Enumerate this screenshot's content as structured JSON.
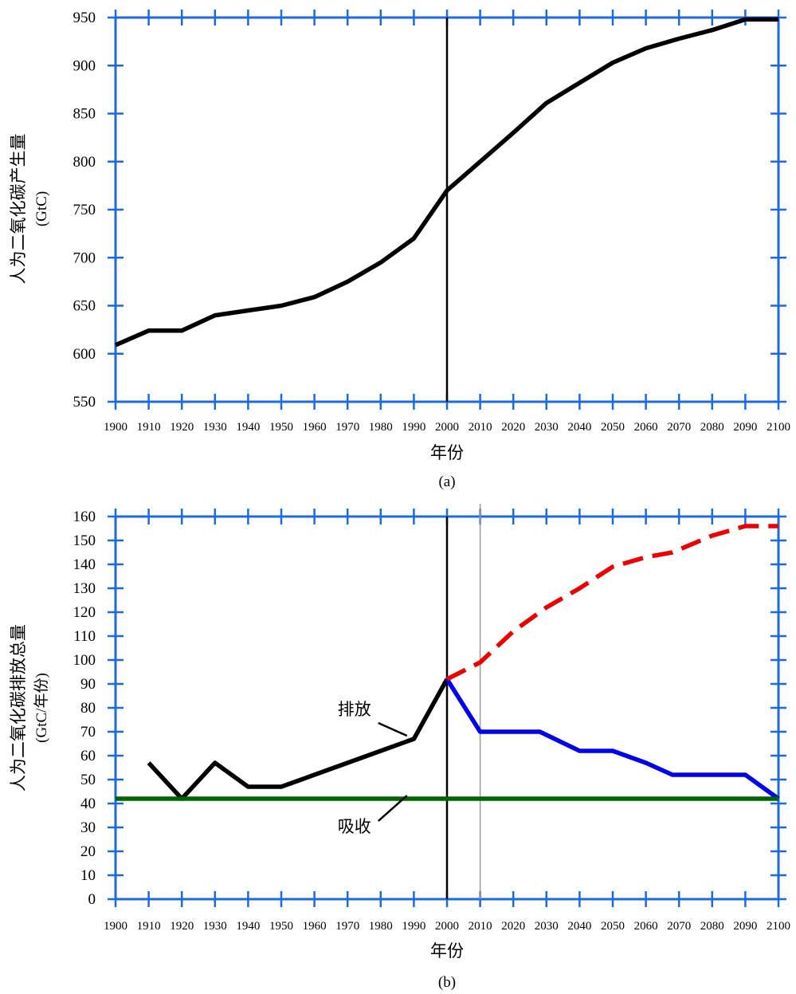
{
  "chart_data": [
    {
      "type": "line",
      "caption": "(a)",
      "xlabel": "年份",
      "ylabel": "人为二氧化碳产生量",
      "ylabel_unit": "(GtC)",
      "xlim": [
        1900,
        2100
      ],
      "ylim": [
        550,
        950
      ],
      "x_ticks": [
        1900,
        1910,
        1920,
        1930,
        1940,
        1950,
        1960,
        1970,
        1980,
        1990,
        2000,
        2010,
        2020,
        2030,
        2040,
        2050,
        2060,
        2070,
        2080,
        2090,
        2100
      ],
      "y_ticks": [
        550,
        600,
        650,
        700,
        750,
        800,
        850,
        900,
        950
      ],
      "vline": 2000,
      "series": [
        {
          "color": "#000000",
          "style": "solid",
          "x": [
            1900,
            1910,
            1920,
            1930,
            1940,
            1950,
            1960,
            1970,
            1980,
            1990,
            2000,
            2010,
            2020,
            2030,
            2040,
            2050,
            2060,
            2070,
            2080,
            2090,
            2100
          ],
          "values": [
            609,
            624,
            624,
            640,
            645,
            650,
            659,
            675,
            695,
            720,
            770,
            800,
            830,
            861,
            882,
            903,
            918,
            928,
            937,
            948,
            948
          ]
        }
      ]
    },
    {
      "type": "line",
      "caption": "(b)",
      "xlabel": "年份",
      "ylabel": "人为二氧化碳排放总量",
      "ylabel_unit": "(GtC/年份)",
      "xlim": [
        1900,
        2100
      ],
      "ylim": [
        0,
        160
      ],
      "x_ticks": [
        1900,
        1910,
        1920,
        1930,
        1940,
        1950,
        1960,
        1970,
        1980,
        1990,
        2000,
        2010,
        2020,
        2030,
        2040,
        2050,
        2060,
        2070,
        2080,
        2090,
        2100
      ],
      "y_ticks": [
        0,
        10,
        20,
        30,
        40,
        50,
        60,
        70,
        80,
        90,
        100,
        110,
        120,
        130,
        140,
        150,
        160
      ],
      "vline": 2000,
      "vline_thin": 2010,
      "annotations": [
        {
          "text": "排放",
          "at_x": 1986,
          "at_y": 67
        },
        {
          "text": "吸收",
          "at_x": 1986,
          "at_y": 40
        }
      ],
      "series": [
        {
          "color": "#000000",
          "style": "solid",
          "x": [
            1910,
            1920,
            1930,
            1940,
            1950,
            1960,
            1970,
            1980,
            1990,
            2000
          ],
          "values": [
            57,
            42,
            57,
            47,
            47,
            52,
            57,
            62,
            67,
            92
          ]
        },
        {
          "color": "#0000ee",
          "style": "solid",
          "x": [
            2000,
            2010,
            2020,
            2028,
            2040,
            2050,
            2060,
            2068,
            2080,
            2090,
            2100
          ],
          "values": [
            92,
            70,
            70,
            70,
            62,
            62,
            57,
            52,
            52,
            52,
            42
          ]
        },
        {
          "color": "#ee0000",
          "style": "dashed",
          "x": [
            2000,
            2010,
            2020,
            2030,
            2040,
            2050,
            2060,
            2068,
            2080,
            2090,
            2100
          ],
          "values": [
            92,
            99,
            112,
            122,
            130,
            139,
            143,
            145,
            152,
            156,
            156
          ]
        },
        {
          "color": "#006400",
          "style": "solid",
          "x": [
            1900,
            2100
          ],
          "values": [
            42,
            42
          ]
        }
      ]
    }
  ]
}
